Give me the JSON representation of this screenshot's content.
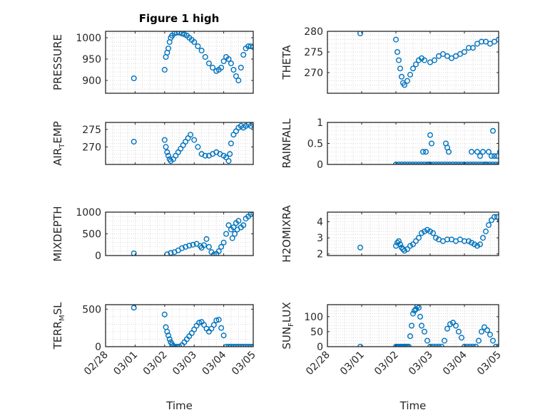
{
  "figure_title": "Figure 1 high",
  "colors": {
    "marker": "#0072BD",
    "axis": "#262626",
    "grid": "#cccccc"
  },
  "chart_data": [
    {
      "type": "scatter",
      "ylabel_main": "PRESSURE",
      "ylabel_sub": "",
      "ylim": [
        870,
        1015
      ],
      "yticks": [
        900,
        950,
        1000
      ],
      "grid": true,
      "x": [
        "02/28 23:00",
        "03/01 00:00",
        "03/01 01:00",
        "03/01 02:00",
        "03/01 03:00",
        "03/01 04:00",
        "03/01 05:00",
        "03/01 06:00",
        "03/01 08:00",
        "03/01 10:00",
        "03/01 12:00",
        "03/01 14:00",
        "03/01 16:00",
        "03/01 18:00",
        "03/01 20:00",
        "03/01 22:00",
        "03/02 00:00",
        "03/02 03:00",
        "03/02 06:00",
        "03/02 09:00",
        "03/02 12:00",
        "03/02 15:00",
        "03/02 18:00",
        "03/02 20:00",
        "03/02 22:00",
        "03/03 00:00",
        "03/03 02:00",
        "03/03 04:00",
        "03/03 06:00",
        "03/03 08:00",
        "03/03 10:00",
        "03/03 12:00",
        "03/03 14:00",
        "03/03 16:00",
        "03/03 18:00",
        "03/03 20:00",
        "03/03 22:00",
        "03/04 00:00",
        "03/04 02:00",
        "03/04 04:00",
        "03/04 05:00",
        "03/04 06:00",
        "03/04 08:00",
        "03/04 10:00",
        "03/04 12:00",
        "03/04 14:00",
        "03/04 16:00",
        "03/04 18:00"
      ],
      "y": [
        905,
        925,
        955,
        965,
        975,
        990,
        1000,
        1005,
        1010,
        1012,
        1012,
        1010,
        1008,
        1005,
        1000,
        995,
        990,
        980,
        970,
        955,
        940,
        930,
        922,
        925,
        930,
        945,
        955,
        950,
        940,
        925,
        910,
        900,
        930,
        960,
        975,
        980,
        980,
        978,
        978,
        980,
        982,
        980,
        945,
        870,
        880,
        900,
        905,
        895
      ]
    },
    {
      "type": "scatter",
      "ylabel_main": "THETA",
      "ylabel_sub": "",
      "ylim": [
        265,
        280
      ],
      "yticks": [
        270,
        275,
        280
      ],
      "grid": true,
      "x": [
        "02/28 23:00",
        "03/01 00:00",
        "03/01 01:00",
        "03/01 02:00",
        "03/01 03:00",
        "03/01 04:00",
        "03/01 05:00",
        "03/01 06:00",
        "03/01 08:00",
        "03/01 10:00",
        "03/01 12:00",
        "03/01 14:00",
        "03/01 16:00",
        "03/01 18:00",
        "03/01 20:00",
        "03/02 00:00",
        "03/02 03:00",
        "03/02 06:00",
        "03/02 09:00",
        "03/02 12:00",
        "03/02 15:00",
        "03/02 18:00",
        "03/02 21:00",
        "03/03 00:00",
        "03/03 03:00",
        "03/03 06:00",
        "03/03 09:00",
        "03/03 12:00",
        "03/03 15:00",
        "03/03 18:00",
        "03/03 21:00",
        "03/04 00:00",
        "03/04 03:00",
        "03/04 06:00",
        "03/04 09:00",
        "03/04 12:00",
        "03/04 15:00",
        "03/04 18:00"
      ],
      "y": [
        279.5,
        278,
        275,
        273,
        271,
        269,
        267.5,
        267,
        268,
        269.5,
        271,
        272,
        273,
        273.5,
        273,
        272.5,
        273,
        274,
        274.5,
        274,
        273.5,
        274,
        274.5,
        275,
        276,
        276,
        277,
        277.5,
        277.5,
        277,
        277.5,
        278,
        278,
        277.5,
        277.5,
        277,
        277,
        277
      ]
    },
    {
      "type": "scatter",
      "ylabel_main": "AIR",
      "ylabel_sub": "T",
      "ylabel_tail": "EMP",
      "ylim": [
        265,
        277
      ],
      "yticks": [
        270,
        275
      ],
      "grid": true,
      "x": [
        "02/28 23:00",
        "03/01 00:00",
        "03/01 01:00",
        "03/01 02:00",
        "03/01 03:00",
        "03/01 04:00",
        "03/01 05:00",
        "03/01 07:00",
        "03/01 09:00",
        "03/01 11:00",
        "03/01 13:00",
        "03/01 15:00",
        "03/01 17:00",
        "03/01 19:00",
        "03/01 21:00",
        "03/02 00:00",
        "03/02 03:00",
        "03/02 06:00",
        "03/02 09:00",
        "03/02 12:00",
        "03/02 15:00",
        "03/02 18:00",
        "03/02 21:00",
        "03/03 00:00",
        "03/03 02:00",
        "03/03 04:00",
        "03/03 05:00",
        "03/03 06:00",
        "03/03 08:00",
        "03/03 10:00",
        "03/03 12:00",
        "03/03 14:00",
        "03/03 16:00",
        "03/03 18:00",
        "03/03 20:00",
        "03/03 22:00",
        "03/04 00:00",
        "03/04 02:00",
        "03/04 04:00",
        "03/04 06:00",
        "03/04 08:00",
        "03/04 10:00",
        "03/04 12:00",
        "03/04 14:00",
        "03/04 16:00",
        "03/04 18:00"
      ],
      "y": [
        271.5,
        272,
        270,
        268.5,
        267.5,
        266.5,
        266,
        266.5,
        267.5,
        268.5,
        269.5,
        270.5,
        271.5,
        272.5,
        273.5,
        272,
        270,
        268,
        267.5,
        267.5,
        268,
        268.5,
        268,
        267.5,
        267,
        266,
        268,
        271,
        273.5,
        274.5,
        275.5,
        276,
        275.5,
        276,
        276.5,
        276,
        276.5,
        273.5,
        267.5,
        268.5,
        269,
        269.5,
        270,
        269.5,
        269.5,
        269
      ]
    },
    {
      "type": "scatter",
      "ylabel_main": "RAINFALL",
      "ylabel_sub": "",
      "ylim": [
        0,
        1
      ],
      "yticks": [
        0,
        0.5,
        1
      ],
      "grid": true,
      "x": [
        "03/01 00:00",
        "03/01 02:00",
        "03/01 04:00",
        "03/01 06:00",
        "03/01 08:00",
        "03/01 10:00",
        "03/01 12:00",
        "03/01 14:00",
        "03/01 16:00",
        "03/01 18:00",
        "03/01 20:00",
        "03/01 22:00",
        "03/02 00:00",
        "03/02 02:00",
        "03/02 04:00",
        "03/02 06:00",
        "03/02 08:00",
        "03/02 10:00",
        "03/02 12:00",
        "03/02 14:00",
        "03/02 16:00",
        "03/02 18:00",
        "03/02 20:00",
        "03/02 22:00",
        "03/03 00:00",
        "03/03 02:00",
        "03/03 04:00",
        "03/03 06:00",
        "03/03 08:00",
        "03/03 10:00",
        "03/03 12:00",
        "03/03 14:00",
        "03/03 16:00",
        "03/03 18:00",
        "03/03 20:00",
        "03/03 22:00",
        "03/04 00:00",
        "03/04 02:00",
        "03/04 04:00",
        "03/04 06:00",
        "03/04 08:00",
        "03/04 10:00",
        "03/04 12:00",
        "03/04 14:00",
        "03/04 16:00",
        "03/04 18:00",
        "03/01 19:00",
        "03/01 21:00",
        "03/01 23:00",
        "03/02 00:00",
        "03/02 01:00",
        "03/02 11:00",
        "03/02 12:00",
        "03/02 13:00",
        "03/03 05:00",
        "03/03 09:00",
        "03/03 11:00",
        "03/03 13:00",
        "03/03 15:00",
        "03/03 17:00",
        "03/03 19:00",
        "03/03 20:00",
        "03/03 21:00",
        "03/03 23:00",
        "03/04 01:00",
        "03/04 04:00"
      ],
      "y": [
        0,
        0,
        0,
        0,
        0,
        0,
        0,
        0,
        0,
        0,
        0,
        0,
        0,
        0,
        0,
        0,
        0,
        0,
        0,
        0,
        0,
        0,
        0,
        0,
        0,
        0,
        0,
        0,
        0,
        0,
        0,
        0,
        0,
        0,
        0,
        0,
        0,
        0,
        0,
        0,
        0,
        0,
        0,
        0,
        0,
        0,
        0.3,
        0.3,
        0,
        0.7,
        0.5,
        0.5,
        0.4,
        0.3,
        0.3,
        0.3,
        0.2,
        0.3,
        0,
        0.3,
        0.2,
        0.8,
        0.2,
        0.2,
        0.3,
        0.2
      ]
    },
    {
      "type": "scatter",
      "ylabel_main": "MIXDEPTH",
      "ylabel_sub": "",
      "ylim": [
        0,
        1000
      ],
      "yticks": [
        0,
        500,
        1000
      ],
      "grid": true,
      "x": [
        "02/28 23:00",
        "03/01 02:00",
        "03/01 05:00",
        "03/01 08:00",
        "03/01 11:00",
        "03/01 14:00",
        "03/01 17:00",
        "03/01 20:00",
        "03/01 23:00",
        "03/02 02:00",
        "03/02 05:00",
        "03/02 06:00",
        "03/02 08:00",
        "03/02 10:00",
        "03/02 12:00",
        "03/02 14:00",
        "03/02 16:00",
        "03/02 18:00",
        "03/02 20:00",
        "03/02 22:00",
        "03/03 00:00",
        "03/03 02:00",
        "03/03 04:00",
        "03/03 06:00",
        "03/03 08:00",
        "03/03 10:00",
        "03/03 12:00",
        "03/03 14:00",
        "03/03 16:00",
        "03/03 18:00",
        "03/03 20:00",
        "03/03 22:00",
        "03/04 00:00",
        "03/04 02:00",
        "03/04 04:00",
        "03/04 06:00",
        "03/04 08:00",
        "03/04 10:00",
        "03/04 12:00",
        "03/04 14:00",
        "03/04 16:00",
        "03/04 18:00",
        "03/03 07:00",
        "03/03 09:00",
        "03/03 11:00"
      ],
      "y": [
        50,
        30,
        60,
        80,
        120,
        170,
        200,
        230,
        250,
        270,
        220,
        180,
        240,
        380,
        200,
        80,
        20,
        40,
        100,
        200,
        300,
        500,
        700,
        600,
        650,
        750,
        800,
        650,
        700,
        850,
        900,
        950,
        980,
        1000,
        1000,
        600,
        200,
        150,
        180,
        100,
        20,
        10,
        400,
        500,
        600
      ]
    },
    {
      "type": "scatter",
      "ylabel_main": "H2OMIXRA",
      "ylabel_sub": "",
      "ylim": [
        1.9,
        4.6
      ],
      "yticks": [
        2,
        3,
        4
      ],
      "grid": true,
      "x": [
        "02/28 23:00",
        "03/01 00:00",
        "03/01 01:00",
        "03/01 02:00",
        "03/01 03:00",
        "03/01 04:00",
        "03/01 05:00",
        "03/01 06:00",
        "03/01 08:00",
        "03/01 10:00",
        "03/01 12:00",
        "03/01 14:00",
        "03/01 16:00",
        "03/01 18:00",
        "03/01 20:00",
        "03/01 22:00",
        "03/02 00:00",
        "03/02 02:00",
        "03/02 04:00",
        "03/02 06:00",
        "03/02 09:00",
        "03/02 12:00",
        "03/02 15:00",
        "03/02 18:00",
        "03/02 21:00",
        "03/03 00:00",
        "03/03 03:00",
        "03/03 05:00",
        "03/03 07:00",
        "03/03 09:00",
        "03/03 11:00",
        "03/03 13:00",
        "03/03 15:00",
        "03/03 17:00",
        "03/03 19:00",
        "03/03 21:00",
        "03/03 23:00",
        "03/04 01:00",
        "03/04 03:00",
        "03/04 05:00",
        "03/04 07:00",
        "03/04 09:00",
        "03/04 11:00",
        "03/04 13:00",
        "03/04 15:00",
        "03/04 17:00",
        "03/04 19:00"
      ],
      "y": [
        2.4,
        2.5,
        2.7,
        2.8,
        2.6,
        2.4,
        2.3,
        2.2,
        2.3,
        2.5,
        2.6,
        2.8,
        3.0,
        3.3,
        3.4,
        3.5,
        3.4,
        3.3,
        3.0,
        2.9,
        2.8,
        2.9,
        2.9,
        2.8,
        2.9,
        2.8,
        2.8,
        2.7,
        2.6,
        2.5,
        2.6,
        3.0,
        3.4,
        3.8,
        4.1,
        4.3,
        4.3,
        4.1,
        3.9,
        3.5,
        3.3,
        3.3,
        3.1,
        2.8,
        2.7,
        2.7,
        2.7
      ]
    },
    {
      "type": "scatter",
      "ylabel_main": "TERR",
      "ylabel_sub": "M",
      "ylabel_tail": "SL",
      "ylim": [
        0,
        560
      ],
      "yticks": [
        0,
        500
      ],
      "grid": true,
      "x": [
        "02/28 23:00",
        "03/01 00:00",
        "03/01 01:00",
        "03/01 02:00",
        "03/01 03:00",
        "03/01 04:00",
        "03/01 05:00",
        "03/01 06:00",
        "03/01 07:00",
        "03/01 08:00",
        "03/01 10:00",
        "03/01 12:00",
        "03/01 14:00",
        "03/01 16:00",
        "03/01 18:00",
        "03/01 20:00",
        "03/01 22:00",
        "03/02 00:00",
        "03/02 02:00",
        "03/02 04:00",
        "03/02 06:00",
        "03/02 08:00",
        "03/02 10:00",
        "03/02 12:00",
        "03/02 14:00",
        "03/02 16:00",
        "03/02 18:00",
        "03/02 20:00",
        "03/02 22:00",
        "03/03 00:00",
        "03/03 02:00",
        "03/03 04:00",
        "03/03 06:00",
        "03/03 08:00",
        "03/03 10:00",
        "03/03 12:00",
        "03/03 14:00",
        "03/03 16:00",
        "03/03 18:00",
        "03/03 20:00",
        "03/03 22:00",
        "03/04 00:00",
        "03/04 02:00",
        "03/04 04:00",
        "03/04 06:00",
        "03/04 08:00",
        "03/04 10:00",
        "03/04 12:00",
        "03/04 14:00",
        "03/04 16:00",
        "03/04 18:00"
      ],
      "y": [
        520,
        430,
        260,
        200,
        150,
        100,
        60,
        30,
        10,
        0,
        0,
        0,
        20,
        60,
        100,
        140,
        180,
        230,
        280,
        320,
        330,
        290,
        240,
        200,
        240,
        290,
        350,
        360,
        250,
        150,
        0,
        0,
        0,
        0,
        0,
        0,
        0,
        0,
        0,
        0,
        0,
        0,
        0,
        0,
        100,
        420,
        440,
        400,
        300,
        290,
        280
      ]
    },
    {
      "type": "scatter",
      "ylabel_main": "SUN",
      "ylabel_sub": "F",
      "ylabel_tail": "LUX",
      "ylim": [
        0,
        140
      ],
      "yticks": [
        0,
        50,
        100
      ],
      "grid": true,
      "x": [
        "02/28 23:00",
        "03/01 00:00",
        "03/01 01:00",
        "03/01 02:00",
        "03/01 03:00",
        "03/01 04:00",
        "03/01 05:00",
        "03/01 06:00",
        "03/01 07:00",
        "03/01 08:00",
        "03/01 09:00",
        "03/01 10:00",
        "03/01 11:00",
        "03/01 12:00",
        "03/01 13:00",
        "03/01 14:00",
        "03/01 15:00",
        "03/01 16:00",
        "03/01 17:00",
        "03/01 18:00",
        "03/01 20:00",
        "03/01 22:00",
        "03/02 00:00",
        "03/02 02:00",
        "03/02 04:00",
        "03/02 06:00",
        "03/02 08:00",
        "03/02 10:00",
        "03/02 12:00",
        "03/02 14:00",
        "03/02 16:00",
        "03/02 18:00",
        "03/02 20:00",
        "03/02 22:00",
        "03/03 00:00",
        "03/03 02:00",
        "03/03 04:00",
        "03/03 06:00",
        "03/03 08:00",
        "03/03 10:00",
        "03/03 12:00",
        "03/03 14:00",
        "03/03 16:00",
        "03/03 18:00",
        "03/03 20:00",
        "03/03 22:00",
        "03/04 00:00",
        "03/04 02:00",
        "03/04 04:00",
        "03/04 06:00",
        "03/04 08:00",
        "03/04 10:00",
        "03/04 12:00",
        "03/04 14:00",
        "03/04 16:00",
        "03/04 17:00",
        "03/04 18:00"
      ],
      "y": [
        0,
        0,
        0,
        0,
        0,
        0,
        0,
        0,
        0,
        0,
        0,
        35,
        70,
        110,
        120,
        125,
        135,
        130,
        100,
        70,
        50,
        20,
        0,
        0,
        0,
        0,
        0,
        20,
        60,
        75,
        80,
        70,
        50,
        30,
        0,
        0,
        0,
        0,
        0,
        20,
        50,
        65,
        55,
        40,
        20,
        0,
        0,
        0,
        0,
        0,
        20,
        60,
        85,
        130,
        110,
        100,
        80
      ]
    }
  ],
  "xticks": [
    "02/28",
    "03/01",
    "03/02",
    "03/03",
    "03/04",
    "03/05"
  ],
  "xlabel": "Time"
}
